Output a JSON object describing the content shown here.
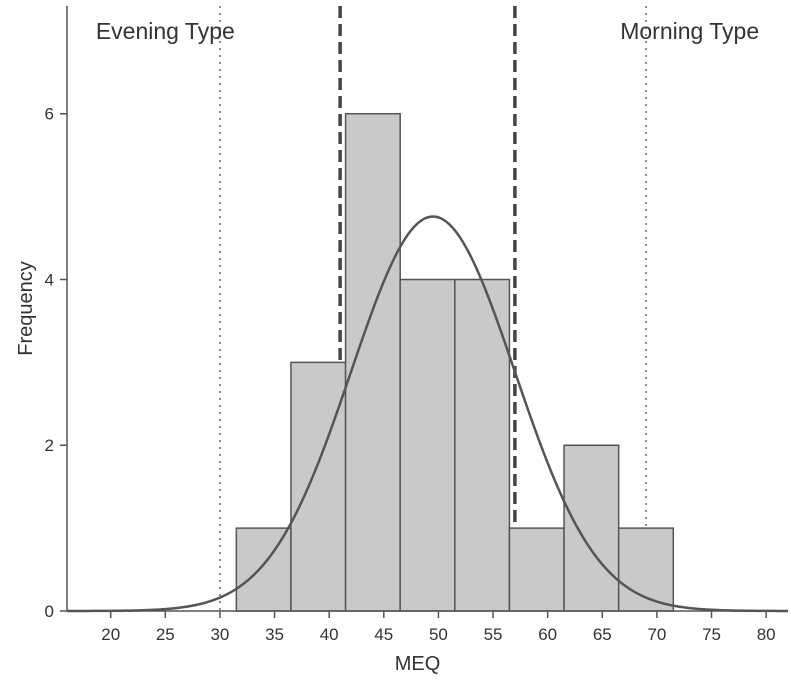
{
  "chart_data": {
    "type": "bar",
    "title": "",
    "xlabel": "MEQ",
    "ylabel": "Frequency",
    "xlim": [
      16,
      82
    ],
    "ylim": [
      0,
      7.3
    ],
    "xticks": [
      20,
      25,
      30,
      35,
      40,
      45,
      50,
      55,
      60,
      65,
      70,
      75,
      80
    ],
    "yticks": [
      0,
      2,
      4,
      6
    ],
    "bins": [
      {
        "start": 31.5,
        "end": 36.5,
        "count": 1
      },
      {
        "start": 36.5,
        "end": 41.5,
        "count": 3
      },
      {
        "start": 41.5,
        "end": 46.5,
        "count": 6
      },
      {
        "start": 46.5,
        "end": 51.5,
        "count": 4
      },
      {
        "start": 51.5,
        "end": 56.5,
        "count": 4
      },
      {
        "start": 56.5,
        "end": 61.5,
        "count": 1
      },
      {
        "start": 61.5,
        "end": 66.5,
        "count": 2
      },
      {
        "start": 66.5,
        "end": 71.5,
        "count": 1
      }
    ],
    "normal_curve": {
      "mean": 49.5,
      "sd": 7.5,
      "peak": 4.76
    },
    "reference_lines": [
      {
        "x": 30,
        "style": "dotted"
      },
      {
        "x": 41,
        "style": "dashed"
      },
      {
        "x": 57,
        "style": "dashed"
      },
      {
        "x": 69,
        "style": "dotted"
      }
    ],
    "annotations": [
      {
        "text": "Evening Type",
        "x": 25,
        "y": 7.0
      },
      {
        "text": "Morning Type",
        "x": 73,
        "y": 7.0
      }
    ],
    "grid": false,
    "colors": {
      "bar_fill": "#c9c9c9",
      "bar_stroke": "#555555",
      "curve": "#555555",
      "axis": "#555555",
      "text": "#333333"
    }
  }
}
